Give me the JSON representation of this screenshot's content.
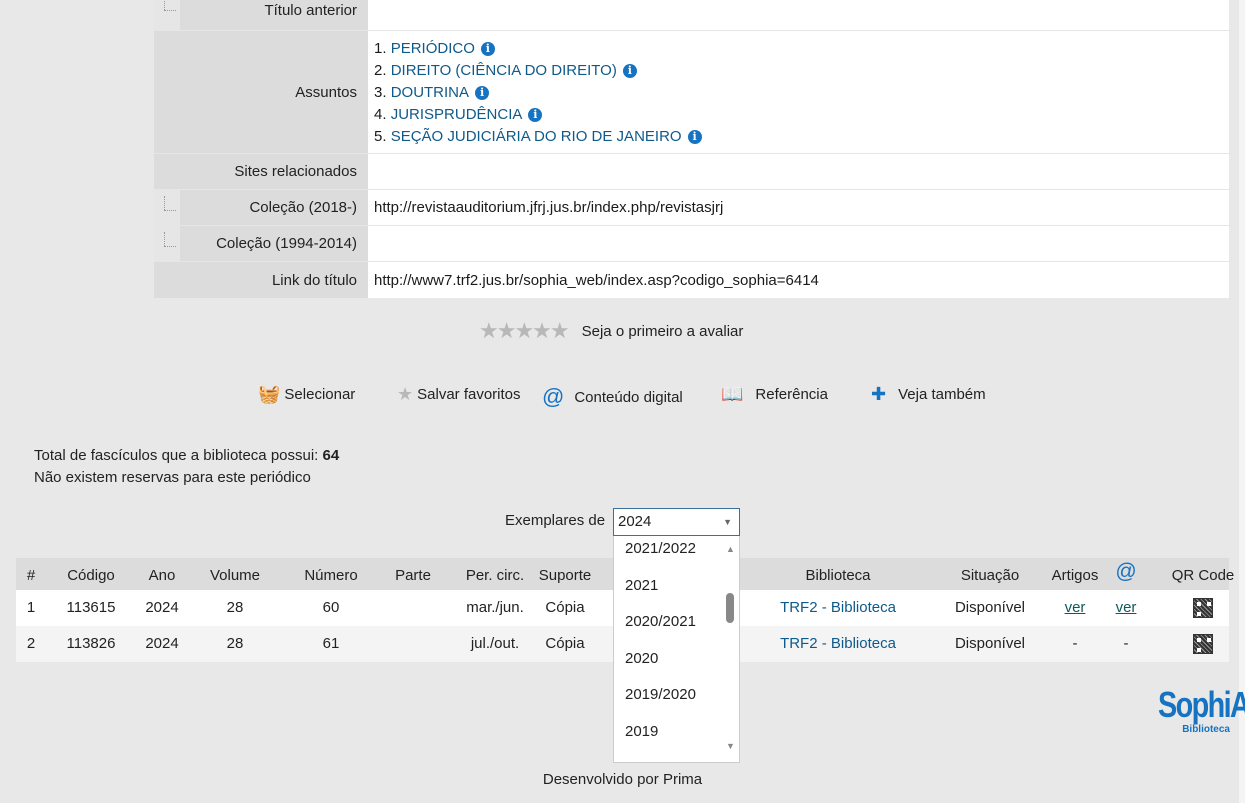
{
  "details": {
    "titulo_anterior_label": "Título anterior",
    "assuntos_label": "Assuntos",
    "assuntos": [
      {
        "num": "1.",
        "text": "PERIÓDICO"
      },
      {
        "num": "2.",
        "text": "DIREITO (CIÊNCIA DO DIREITO)"
      },
      {
        "num": "3.",
        "text": "DOUTRINA"
      },
      {
        "num": "4.",
        "text": "JURISPRUDÊNCIA"
      },
      {
        "num": "5.",
        "text": "SEÇÃO JUDICIÁRIA DO RIO DE JANEIRO"
      }
    ],
    "sites_label": "Sites relacionados",
    "colecao1_label": "Coleção (2018-)",
    "colecao1_value": "http://revistaauditorium.jfrj.jus.br/index.php/revistasjrj",
    "colecao2_label": "Coleção (1994-2014)",
    "link_label": "Link do título",
    "link_value": "http://www7.trf2.jus.br/sophia_web/index.asp?codigo_sophia=6414"
  },
  "rating": {
    "stars": "★★★★★",
    "value": 0,
    "max": 5,
    "text": "Seja o primeiro a avaliar"
  },
  "toolbar": [
    {
      "icon": "basket-icon",
      "glyph": "🧺",
      "label": "Selecionar"
    },
    {
      "icon": "star-icon",
      "glyph": "★",
      "label": "Salvar favoritos"
    },
    {
      "icon": "at-icon",
      "glyph": "@",
      "label": "Conteúdo digital"
    },
    {
      "icon": "book-icon",
      "glyph": "📖",
      "label": "Referência"
    },
    {
      "icon": "plus-comment-icon",
      "glyph": "✚",
      "label": "Veja também"
    }
  ],
  "summary": {
    "total_label": "Total de fascículos que a biblioteca possui: ",
    "total": "64",
    "reservas": "Não existem reservas para este periódico"
  },
  "exemplares": {
    "label": "Exemplares de",
    "selected": "2024",
    "arrow": "▼",
    "up": "▲",
    "down": "▼",
    "options": [
      "2021/2022",
      "2021",
      "2020/2021",
      "2020",
      "2019/2020",
      "2019"
    ]
  },
  "table": {
    "headers": [
      "#",
      "Código",
      "Ano",
      "Volume",
      "Número",
      "Parte",
      "Per. circ.",
      "Suporte",
      "Biblioteca",
      "Situação",
      "Artigos",
      "@",
      "QR Code"
    ],
    "rows": [
      [
        "1",
        "113615",
        "2024",
        "28",
        "60",
        "",
        "mar./jun.",
        "Cópia",
        "TRF2 - Biblioteca",
        "Disponível",
        "ver",
        "ver",
        ""
      ],
      [
        "2",
        "113826",
        "2024",
        "28",
        "61",
        "",
        "jul./out.",
        "Cópia",
        "TRF2 - Biblioteca",
        "Disponível",
        "-",
        "-",
        ""
      ]
    ]
  },
  "logo": {
    "text": "SophiA",
    "sub": "Biblioteca"
  },
  "footer": "Desenvolvido por Prima",
  "colors": {
    "accent": "#1673c2",
    "link": "#0e5a8a",
    "page_bg": "#e8e8e8"
  }
}
